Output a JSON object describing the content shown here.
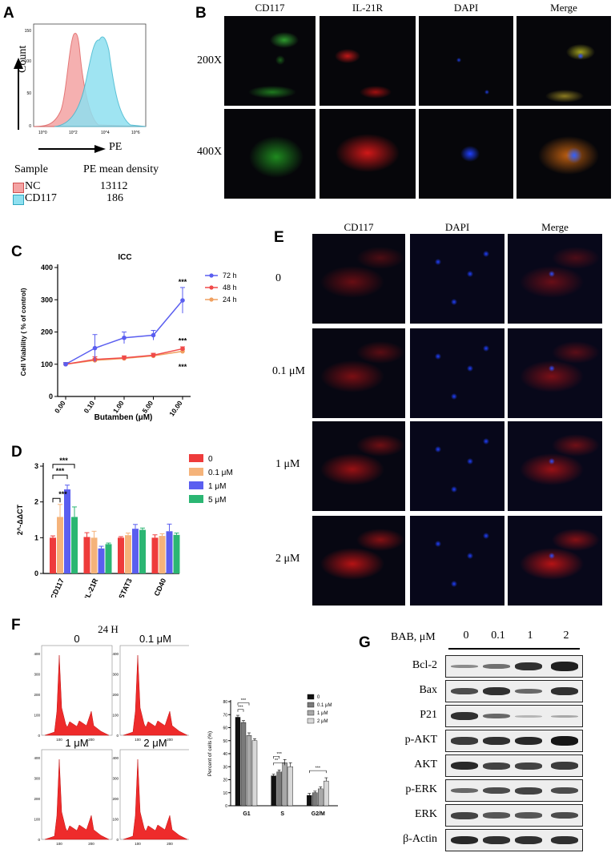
{
  "panels": {
    "A": "A",
    "B": "B",
    "C": "C",
    "D": "D",
    "E": "E",
    "F": "F",
    "G": "G"
  },
  "panelA": {
    "ylabel": "Count",
    "xlabel": "PE",
    "yticks": [
      "0",
      "50",
      "100",
      "150"
    ],
    "xticks": [
      "10^0",
      "10^2",
      "10^4",
      "10^6"
    ],
    "table_header": [
      "Sample",
      "PE mean density"
    ],
    "rows": [
      {
        "name": "NC",
        "value": "13112",
        "color": "#f4a3a3"
      },
      {
        "name": "CD117",
        "value": "186",
        "color": "#8fe0f0"
      }
    ]
  },
  "panelB": {
    "cols": [
      "CD117",
      "IL-21R",
      "DAPI",
      "Merge"
    ],
    "rows": [
      "200X",
      "400X"
    ]
  },
  "chart_data": [
    {
      "type": "line",
      "title": "ICC",
      "xlabel": "Butamben (μM)",
      "ylabel": "Cell Viability ( % of control)",
      "categories": [
        "0.00",
        "0.10",
        "1.00",
        "5.00",
        "10.00"
      ],
      "yticks": [
        "0",
        "100",
        "200",
        "300",
        "400"
      ],
      "ylim": [
        0,
        400
      ],
      "series": [
        {
          "name": "72 h",
          "color": "#5a5ef0",
          "values": [
            100,
            150,
            182,
            190,
            298
          ],
          "err": [
            5,
            42,
            18,
            15,
            40
          ]
        },
        {
          "name": "48 h",
          "color": "#f04a4a",
          "values": [
            100,
            115,
            120,
            128,
            148
          ],
          "err": [
            5,
            8,
            6,
            6,
            6
          ]
        },
        {
          "name": "24 h",
          "color": "#f0a060",
          "values": [
            100,
            112,
            118,
            126,
            140
          ],
          "err": [
            5,
            6,
            6,
            6,
            6
          ]
        }
      ],
      "annotations": [
        "***",
        "***",
        "***"
      ]
    },
    {
      "type": "bar",
      "ylabel": "2^-ΔΔCT",
      "categories": [
        "CD117",
        "IL-21R",
        "STAT3",
        "CD40"
      ],
      "yticks": [
        "0",
        "1",
        "2",
        "3"
      ],
      "ylim": [
        0,
        3
      ],
      "series": [
        {
          "name": "0",
          "color": "#ee3b3b",
          "values": [
            1.0,
            1.02,
            1.0,
            1.0
          ],
          "err": [
            0.05,
            0.12,
            0.03,
            0.08
          ]
        },
        {
          "name": "0.1 μM",
          "color": "#f5b37a",
          "values": [
            1.58,
            1.0,
            1.07,
            1.05
          ],
          "err": [
            0.35,
            0.18,
            0.06,
            0.06
          ]
        },
        {
          "name": "1 μM",
          "color": "#5a5ef0",
          "values": [
            2.35,
            0.7,
            1.25,
            1.18
          ],
          "err": [
            0.12,
            0.06,
            0.12,
            0.2
          ]
        },
        {
          "name": "5 μM",
          "color": "#2bb673",
          "values": [
            1.58,
            0.82,
            1.22,
            1.08
          ],
          "err": [
            0.28,
            0.03,
            0.05,
            0.05
          ]
        }
      ],
      "annotations": [
        "***",
        "***",
        "***"
      ]
    },
    {
      "type": "bar",
      "ylabel": "Percent of cells (%)",
      "categories": [
        "G1",
        "S",
        "G2/M"
      ],
      "yticks": [
        "0",
        "10",
        "20",
        "30",
        "40",
        "50",
        "60",
        "70",
        "80"
      ],
      "ylim": [
        0,
        80
      ],
      "series": [
        {
          "name": "0",
          "color": "#111111",
          "values": [
            68,
            23,
            8
          ],
          "err": [
            1.5,
            1.2,
            1.5
          ]
        },
        {
          "name": "0.1 μM",
          "color": "#7a7a7a",
          "values": [
            64,
            26,
            10
          ],
          "err": [
            1.5,
            1.5,
            1.2
          ]
        },
        {
          "name": "1 μM",
          "color": "#a8a8a8",
          "values": [
            54,
            33,
            13
          ],
          "err": [
            2,
            2.5,
            1.5
          ]
        },
        {
          "name": "2 μM",
          "color": "#d8d8d8",
          "values": [
            50,
            30,
            19
          ],
          "err": [
            1.5,
            3,
            2.5
          ]
        }
      ],
      "annotations": [
        "***",
        "***",
        "**",
        "***",
        "***"
      ]
    }
  ],
  "panelE": {
    "cols": [
      "CD117",
      "DAPI",
      "Merge"
    ],
    "rows": [
      "0",
      "0.1 μM",
      "1 μM",
      "2 μM"
    ]
  },
  "panelF": {
    "title": "24 H",
    "hist_labels": [
      "0",
      "0.1 μM",
      "1 μM",
      "2 μM"
    ],
    "hist_yticks": [
      "0",
      "100",
      "200",
      "300",
      "400"
    ],
    "hist_xticks": [
      "100",
      "200"
    ]
  },
  "panelG": {
    "header": "BAB, μM",
    "doses": [
      "0",
      "0.1",
      "1",
      "2"
    ],
    "proteins": [
      "Bcl-2",
      "Bax",
      "P21",
      "p-AKT",
      "AKT",
      "p-ERK",
      "ERK",
      "β-Actin"
    ],
    "intensity": [
      [
        0.35,
        0.5,
        0.85,
        0.95
      ],
      [
        0.7,
        0.85,
        0.55,
        0.85
      ],
      [
        0.85,
        0.55,
        0.12,
        0.2
      ],
      [
        0.8,
        0.85,
        0.9,
        1.0
      ],
      [
        0.9,
        0.75,
        0.75,
        0.8
      ],
      [
        0.55,
        0.7,
        0.75,
        0.7
      ],
      [
        0.75,
        0.65,
        0.65,
        0.7
      ],
      [
        0.9,
        0.85,
        0.85,
        0.85
      ]
    ]
  }
}
